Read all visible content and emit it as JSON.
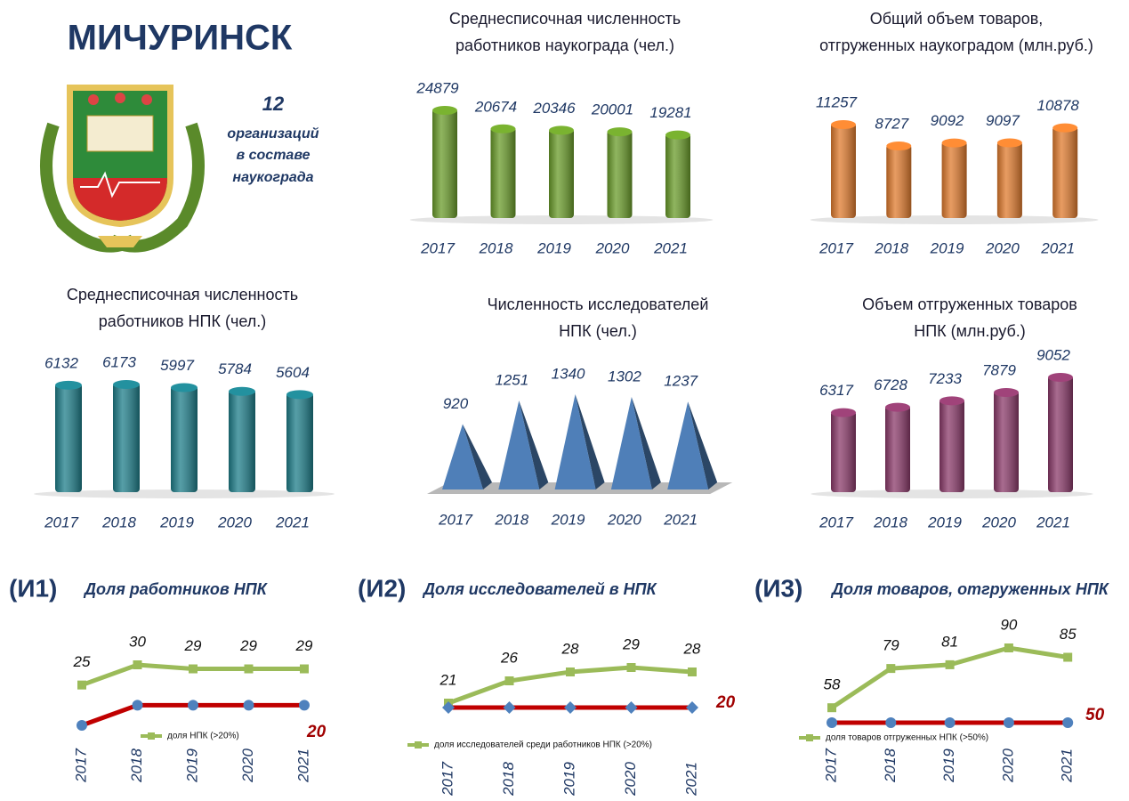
{
  "header": {
    "city": "МИЧУРИНСК",
    "note": [
      "12",
      "организаций",
      "в составе",
      "наукограда"
    ]
  },
  "chart_data": [
    {
      "type": "bar",
      "title": [
        "Среднесписочная численность",
        "работников наукограда (чел.)"
      ],
      "categories": [
        "2017",
        "2018",
        "2019",
        "2020",
        "2021"
      ],
      "values": [
        24879,
        20674,
        20346,
        20001,
        19281
      ],
      "color": "#6a9c2a"
    },
    {
      "type": "bar",
      "title": [
        "Общий объем товаров,",
        "отгруженных наукоградом (млн.руб.)"
      ],
      "categories": [
        "2017",
        "2018",
        "2019",
        "2020",
        "2021"
      ],
      "values": [
        11257,
        8727,
        9092,
        9097,
        10878
      ],
      "color": "#e07b2e"
    },
    {
      "type": "bar",
      "title": [
        "Среднесписочная численность",
        "работников НПК (чел.)"
      ],
      "categories": [
        "2017",
        "2018",
        "2019",
        "2020",
        "2021"
      ],
      "values": [
        6132,
        6173,
        5997,
        5784,
        5604
      ],
      "color": "#1e7e8a"
    },
    {
      "type": "pyramid",
      "title": [
        "Численность исследователей",
        "НПК (чел.)"
      ],
      "categories": [
        "2017",
        "2018",
        "2019",
        "2020",
        "2021"
      ],
      "values": [
        920,
        1251,
        1340,
        1302,
        1237
      ],
      "color": "#4f7fb8"
    },
    {
      "type": "bar",
      "title": [
        "Объем отгруженных товаров",
        "НПК (млн.руб.)"
      ],
      "categories": [
        "2017",
        "2018",
        "2019",
        "2020",
        "2021"
      ],
      "values": [
        6317,
        6728,
        7233,
        7879,
        9052
      ],
      "color": "#8b3a6a"
    },
    {
      "type": "line",
      "code": "(И1)",
      "title": "Доля работников НПК",
      "categories": [
        "2017",
        "2018",
        "2019",
        "2020",
        "2021"
      ],
      "series": [
        {
          "name": "доля НПК (>20%)",
          "color": "#9bbb59",
          "values": [
            25,
            30,
            29,
            29,
            29
          ]
        },
        {
          "color": "#c00000",
          "marker": "circle",
          "values": [
            15,
            20,
            20,
            20,
            20
          ]
        }
      ]
    },
    {
      "type": "line",
      "code": "(И2)",
      "title": "Доля исследователей в НПК",
      "categories": [
        "2017",
        "2018",
        "2019",
        "2020",
        "2021"
      ],
      "series": [
        {
          "name": "доля исследователей среди работников НПК (>20%)",
          "color": "#9bbb59",
          "values": [
            21,
            26,
            28,
            29,
            28
          ]
        },
        {
          "color": "#c00000",
          "marker": "diamond",
          "values": [
            20,
            20,
            20,
            20,
            20
          ]
        }
      ]
    },
    {
      "type": "line",
      "code": "(И3)",
      "title": "Доля товаров, отгруженных НПК",
      "categories": [
        "2017",
        "2018",
        "2019",
        "2020",
        "2021"
      ],
      "series": [
        {
          "name": "доля товаров  отгруженных  НПК (>50%)",
          "color": "#9bbb59",
          "values": [
            58,
            79,
            81,
            90,
            85
          ]
        },
        {
          "color": "#c00000",
          "marker": "circle",
          "values": [
            50,
            50,
            50,
            50,
            50
          ]
        }
      ]
    }
  ]
}
